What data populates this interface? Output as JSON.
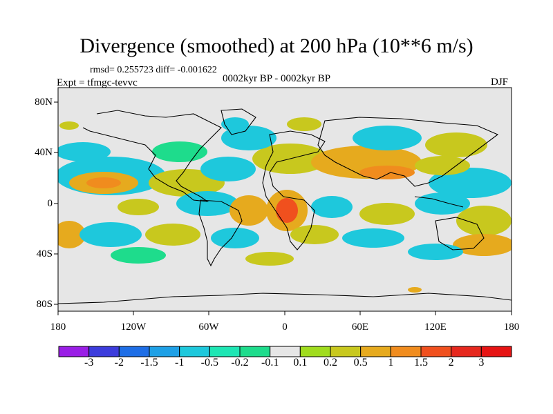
{
  "title": "Divergence (smoothed) at 200 hPa (10**6 m/s)",
  "stats": "rmsd= 0.255723 diff= -0.001622",
  "experiment": "Expt = tfmgc-tevvc",
  "period": "0002kyr BP - 0002kyr BP",
  "season": "DJF",
  "lat_labels": [
    "80N",
    "40N",
    "0",
    "40S",
    "80S"
  ],
  "lon_labels": [
    "180",
    "120W",
    "60W",
    "0",
    "60E",
    "120E",
    "180"
  ],
  "colorbar": {
    "labels": [
      "-3",
      "-2",
      "-1.5",
      "-1",
      "-0.5",
      "-0.2",
      "-0.1",
      "0.1",
      "0.2",
      "0.5",
      "1",
      "1.5",
      "2",
      "3"
    ],
    "colors": [
      "#9a1ee6",
      "#3c3cdc",
      "#1e6ee6",
      "#1ea0e6",
      "#1ec8dc",
      "#1ee6b4",
      "#1edc8c",
      "#e6e6e6",
      "#a0dc1e",
      "#c8c81e",
      "#e6aa1e",
      "#f08c1e",
      "#f0501e",
      "#e6281e",
      "#e61414"
    ]
  },
  "map_colors": {
    "background": "#e6e6e6",
    "pos_weak": "#a0dc1e",
    "pos_mid": "#c8c81e",
    "pos_strong": "#e6aa1e",
    "pos_max": "#f08c1e",
    "neg_weak": "#1edc8c",
    "neg_mid": "#1ec8dc",
    "neg_strong": "#1ea0e6"
  }
}
